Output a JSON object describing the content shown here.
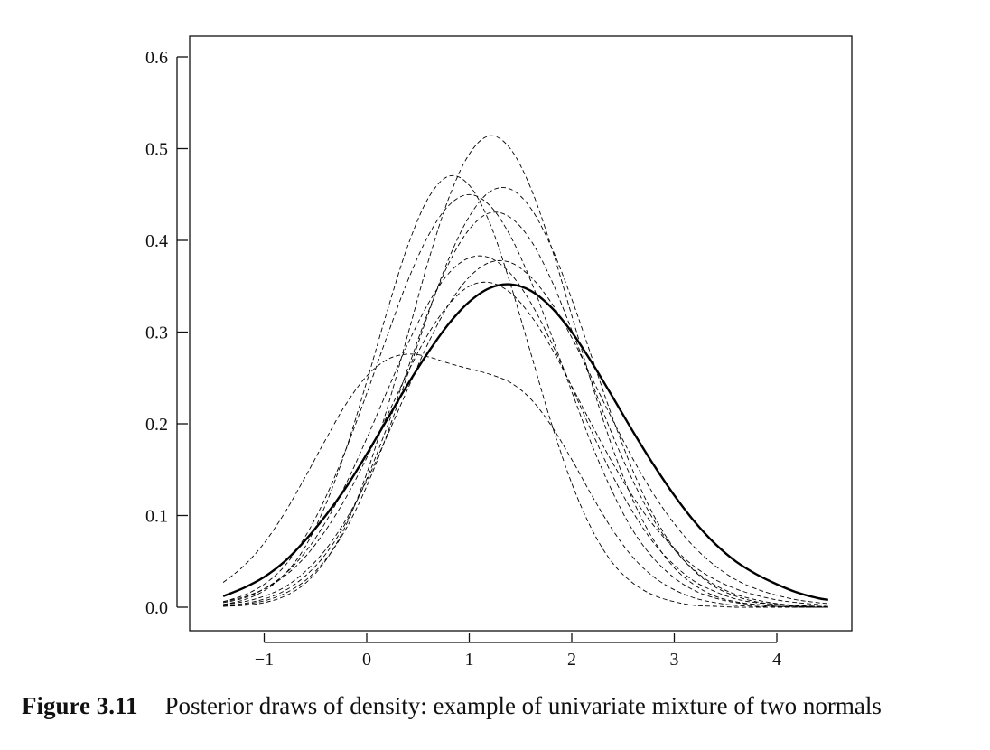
{
  "chart_data": {
    "type": "line",
    "title": "",
    "xlabel": "",
    "ylabel": "",
    "xlim": [
      -1.4,
      4.5
    ],
    "ylim": [
      0.0,
      0.6
    ],
    "x_ticks": [
      -1,
      0,
      1,
      2,
      3,
      4
    ],
    "x_tick_labels": [
      "−1",
      "0",
      "1",
      "2",
      "3",
      "4"
    ],
    "y_ticks": [
      0.0,
      0.1,
      0.2,
      0.3,
      0.4,
      0.5,
      0.6
    ],
    "y_tick_labels": [
      "0.0",
      "0.1",
      "0.2",
      "0.3",
      "0.4",
      "0.5",
      "0.6"
    ],
    "grid": false,
    "legend": "none",
    "x": [
      -1.4,
      -1.2,
      -1.0,
      -0.8,
      -0.6,
      -0.4,
      -0.2,
      0.0,
      0.2,
      0.4,
      0.6,
      0.8,
      1.0,
      1.2,
      1.4,
      1.6,
      1.8,
      2.0,
      2.2,
      2.4,
      2.6,
      2.8,
      3.0,
      3.2,
      3.4,
      3.6,
      3.8,
      4.0,
      4.2,
      4.4,
      4.5
    ],
    "series": [
      {
        "style": "solid",
        "values": [
          0.012,
          0.021,
          0.033,
          0.05,
          0.073,
          0.1,
          0.131,
          0.167,
          0.205,
          0.243,
          0.278,
          0.309,
          0.333,
          0.348,
          0.352,
          0.345,
          0.327,
          0.3,
          0.266,
          0.229,
          0.191,
          0.155,
          0.122,
          0.093,
          0.069,
          0.05,
          0.036,
          0.025,
          0.016,
          0.01,
          0.008
        ]
      },
      {
        "style": "dashed",
        "values": [
          0.003,
          0.008,
          0.018,
          0.036,
          0.066,
          0.112,
          0.173,
          0.246,
          0.323,
          0.394,
          0.446,
          0.47,
          0.46,
          0.419,
          0.353,
          0.277,
          0.201,
          0.135,
          0.084,
          0.048,
          0.026,
          0.013,
          0.006,
          0.002,
          0.001,
          0.0,
          0.0,
          0.0,
          0.0,
          0.0,
          0.0
        ]
      },
      {
        "style": "dashed",
        "values": [
          0.006,
          0.013,
          0.025,
          0.045,
          0.077,
          0.12,
          0.173,
          0.233,
          0.296,
          0.356,
          0.405,
          0.438,
          0.45,
          0.438,
          0.405,
          0.356,
          0.297,
          0.235,
          0.176,
          0.125,
          0.083,
          0.053,
          0.032,
          0.018,
          0.01,
          0.005,
          0.003,
          0.001,
          0.001,
          0.0,
          0.0
        ]
      },
      {
        "style": "dashed",
        "values": [
          0.001,
          0.002,
          0.005,
          0.012,
          0.026,
          0.051,
          0.09,
          0.146,
          0.217,
          0.297,
          0.377,
          0.446,
          0.494,
          0.514,
          0.5,
          0.457,
          0.393,
          0.318,
          0.242,
          0.173,
          0.116,
          0.073,
          0.043,
          0.024,
          0.012,
          0.006,
          0.003,
          0.001,
          0.0,
          0.0,
          0.0
        ]
      },
      {
        "style": "dashed",
        "values": [
          0.001,
          0.003,
          0.007,
          0.015,
          0.029,
          0.052,
          0.086,
          0.132,
          0.189,
          0.254,
          0.32,
          0.38,
          0.426,
          0.453,
          0.456,
          0.435,
          0.393,
          0.336,
          0.271,
          0.206,
          0.148,
          0.1,
          0.064,
          0.039,
          0.022,
          0.012,
          0.006,
          0.003,
          0.001,
          0.0,
          0.0
        ]
      },
      {
        "style": "dashed",
        "values": [
          0.005,
          0.01,
          0.02,
          0.036,
          0.06,
          0.093,
          0.135,
          0.184,
          0.236,
          0.287,
          0.331,
          0.364,
          0.381,
          0.381,
          0.364,
          0.332,
          0.289,
          0.24,
          0.19,
          0.143,
          0.103,
          0.07,
          0.046,
          0.028,
          0.017,
          0.009,
          0.005,
          0.003,
          0.001,
          0.001,
          0.0
        ]
      },
      {
        "style": "dashed",
        "values": [
          0.002,
          0.004,
          0.009,
          0.018,
          0.034,
          0.058,
          0.093,
          0.14,
          0.197,
          0.26,
          0.322,
          0.375,
          0.412,
          0.43,
          0.425,
          0.4,
          0.357,
          0.302,
          0.244,
          0.187,
          0.137,
          0.095,
          0.063,
          0.04,
          0.024,
          0.014,
          0.008,
          0.004,
          0.002,
          0.001,
          0.001
        ]
      },
      {
        "style": "dashed",
        "values": [
          0.027,
          0.045,
          0.07,
          0.103,
          0.142,
          0.183,
          0.222,
          0.252,
          0.27,
          0.276,
          0.273,
          0.266,
          0.26,
          0.254,
          0.245,
          0.227,
          0.198,
          0.161,
          0.121,
          0.084,
          0.054,
          0.033,
          0.019,
          0.01,
          0.005,
          0.002,
          0.001,
          0.001,
          0.0,
          0.0,
          0.0
        ]
      },
      {
        "style": "dashed",
        "values": [
          0.003,
          0.006,
          0.012,
          0.022,
          0.039,
          0.063,
          0.096,
          0.138,
          0.187,
          0.238,
          0.288,
          0.33,
          0.36,
          0.376,
          0.376,
          0.36,
          0.332,
          0.294,
          0.249,
          0.204,
          0.161,
          0.123,
          0.091,
          0.065,
          0.045,
          0.03,
          0.02,
          0.013,
          0.008,
          0.005,
          0.004
        ]
      },
      {
        "style": "dashed",
        "values": [
          0.006,
          0.011,
          0.02,
          0.034,
          0.055,
          0.084,
          0.12,
          0.163,
          0.209,
          0.256,
          0.298,
          0.33,
          0.35,
          0.354,
          0.343,
          0.318,
          0.283,
          0.241,
          0.198,
          0.157,
          0.12,
          0.089,
          0.064,
          0.044,
          0.03,
          0.02,
          0.013,
          0.008,
          0.005,
          0.003,
          0.002
        ]
      }
    ]
  },
  "caption": {
    "figure_number": "Figure 3.11",
    "text": "Posterior draws of density: example of univariate mixture of two normals"
  }
}
